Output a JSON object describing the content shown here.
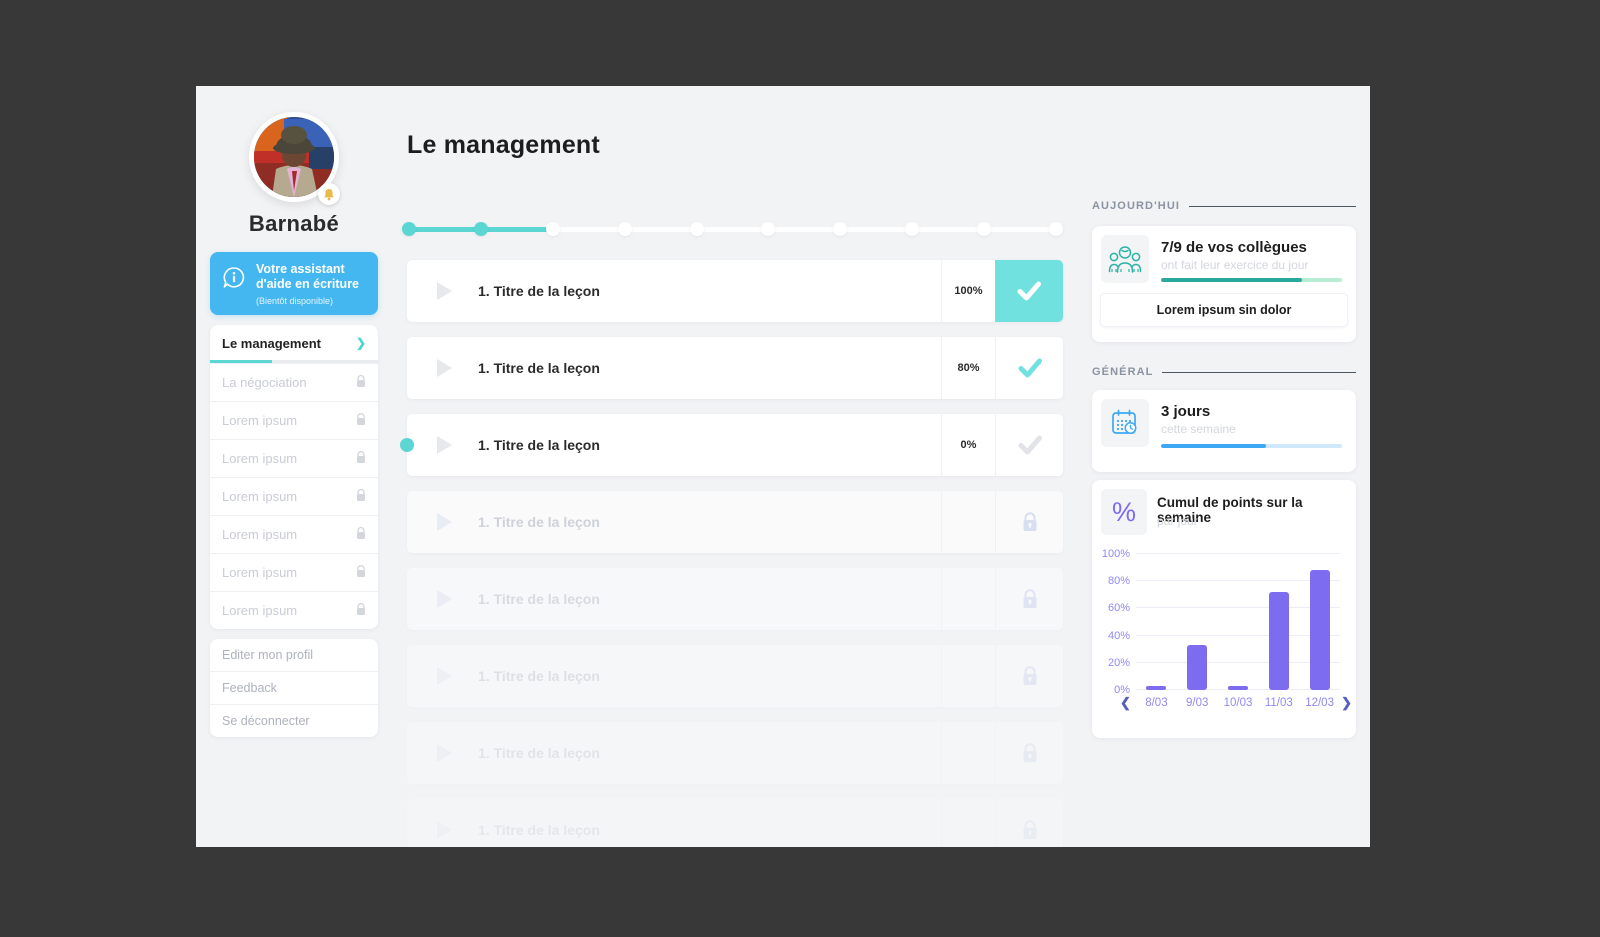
{
  "colors": {
    "accent_teal": "#5cd6d2",
    "check_block_teal": "#70e1de",
    "assistant_blue": "#45b7f0",
    "bar_purple": "#7d6bf0",
    "today_fill": "#2aa89e",
    "today_track": "#b9ecd4",
    "general_fill": "#3ea8f5",
    "general_track": "#cfe8fc",
    "locked_gray": "#c9ccd4"
  },
  "sidebar": {
    "name": "Barnabé",
    "assistant": {
      "title": "Votre assistant d'aide en écriture",
      "subtitle": "(Bientôt disponible)",
      "icon": "chat-info-icon"
    },
    "menu": [
      {
        "label": "Le management",
        "active": true,
        "progress_pct": 37,
        "icon": "chevron-right-icon"
      },
      {
        "label": "La négociation",
        "locked": true,
        "icon": "lock-icon"
      },
      {
        "label": "Lorem ipsum",
        "locked": true,
        "icon": "lock-icon"
      },
      {
        "label": "Lorem ipsum",
        "locked": true,
        "icon": "lock-icon"
      },
      {
        "label": "Lorem ipsum",
        "locked": true,
        "icon": "lock-icon"
      },
      {
        "label": "Lorem ipsum",
        "locked": true,
        "icon": "lock-icon"
      },
      {
        "label": "Lorem ipsum",
        "locked": true,
        "icon": "lock-icon"
      },
      {
        "label": "Lorem ipsum",
        "locked": true,
        "icon": "lock-icon"
      }
    ],
    "footer": [
      {
        "label": "Editer mon profil"
      },
      {
        "label": "Feedback"
      },
      {
        "label": "Se déconnecter"
      }
    ]
  },
  "main": {
    "title": "Le management",
    "stepper": {
      "total_steps": 10,
      "completed_steps": 2
    },
    "lessons": [
      {
        "title": "1. Titre de la leçon",
        "percent": "100%",
        "state": "done-highlight"
      },
      {
        "title": "1. Titre de la leçon",
        "percent": "80%",
        "state": "done"
      },
      {
        "title": "1. Titre de la leçon",
        "percent": "0%",
        "state": "current"
      },
      {
        "title": "1. Titre de la leçon",
        "state": "locked",
        "fade": 0.62
      },
      {
        "title": "1. Titre de la leçon",
        "state": "locked",
        "fade": 0.46
      },
      {
        "title": "1. Titre de la leçon",
        "state": "locked",
        "fade": 0.36
      },
      {
        "title": "1. Titre de la leçon",
        "state": "locked",
        "fade": 0.28
      },
      {
        "title": "1. Titre de la leçon",
        "state": "locked",
        "fade": 0.22
      }
    ]
  },
  "panel": {
    "today": {
      "header": "AUJOURD'HUI",
      "title": "7/9 de vos collègues",
      "subtitle": "ont fait leur exercice du jour",
      "progress_pct": 78,
      "button_label": "Lorem ipsum sin dolor",
      "icon": "colleagues-icon"
    },
    "general": {
      "header": "GÉNÉRAL",
      "title": "3 jours",
      "subtitle": "cette semaine",
      "progress_pct": 58,
      "icon": "calendar-clock-icon"
    },
    "chart_card": {
      "icon_glyph": "%",
      "title": "Cumul de points sur la semaine",
      "subtitle": "par jour"
    }
  },
  "chart_data": {
    "type": "bar",
    "title": "Cumul de points sur la semaine",
    "subtitle": "par jour",
    "categories": [
      "8/03",
      "9/03",
      "10/03",
      "11/03",
      "12/03"
    ],
    "values": [
      2,
      33,
      2,
      72,
      88
    ],
    "ylim": [
      0,
      100
    ],
    "yticks": [
      "0%",
      "20%",
      "40%",
      "60%",
      "80%",
      "100%"
    ],
    "grid": true,
    "bar_color": "#7d6bf0",
    "nav": {
      "prev": "❮",
      "next": "❯"
    }
  }
}
